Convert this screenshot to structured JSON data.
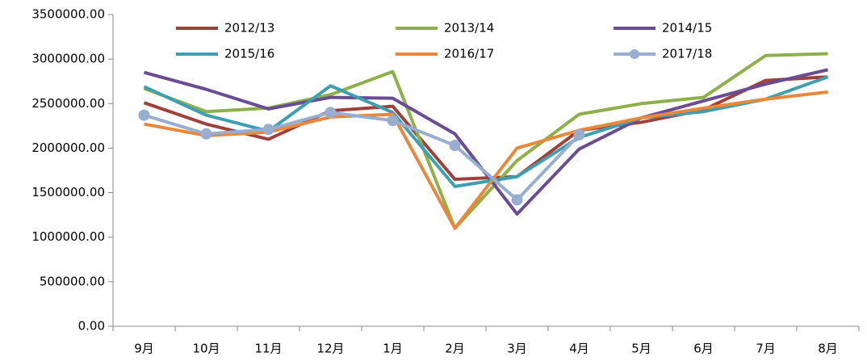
{
  "chart_data": {
    "type": "line",
    "categories": [
      "9月",
      "10月",
      "11月",
      "12月",
      "1月",
      "2月",
      "3月",
      "4月",
      "5月",
      "6月",
      "7月",
      "8月"
    ],
    "series": [
      {
        "name": "2012/13",
        "color": "#a0403a",
        "values": [
          2510000,
          2270000,
          2100000,
          2420000,
          2470000,
          1650000,
          1680000,
          2200000,
          2290000,
          2430000,
          2760000,
          2800000
        ]
      },
      {
        "name": "2013/14",
        "color": "#8db04a",
        "values": [
          2670000,
          2410000,
          2450000,
          2600000,
          2860000,
          1100000,
          1860000,
          2380000,
          2500000,
          2570000,
          3040000,
          3060000
        ]
      },
      {
        "name": "2014/15",
        "color": "#6a4c93",
        "values": [
          2850000,
          2660000,
          2440000,
          2570000,
          2560000,
          2160000,
          1260000,
          1990000,
          2340000,
          2530000,
          2720000,
          2880000
        ]
      },
      {
        "name": "2015/16",
        "color": "#3f9fb0",
        "values": [
          2690000,
          2370000,
          2190000,
          2700000,
          2400000,
          1570000,
          1680000,
          2120000,
          2340000,
          2410000,
          2550000,
          2800000
        ]
      },
      {
        "name": "2016/17",
        "color": "#e9883b",
        "values": [
          2270000,
          2140000,
          2180000,
          2350000,
          2380000,
          1100000,
          2000000,
          2200000,
          2340000,
          2450000,
          2550000,
          2630000
        ]
      },
      {
        "name": "2017/18",
        "color": "#97aed1",
        "markers": true,
        "values": [
          2370000,
          2160000,
          2210000,
          2400000,
          2310000,
          2030000,
          1420000,
          2150000,
          null,
          null,
          null,
          null
        ]
      }
    ],
    "ylim": [
      0,
      3500000
    ],
    "yticks": [
      {
        "value": 0,
        "label": "0.00"
      },
      {
        "value": 500000,
        "label": "500000.00"
      },
      {
        "value": 1000000,
        "label": "1000000.00"
      },
      {
        "value": 1500000,
        "label": "1500000.00"
      },
      {
        "value": 2000000,
        "label": "2000000.00"
      },
      {
        "value": 2500000,
        "label": "2500000.00"
      },
      {
        "value": 3000000,
        "label": "3000000.00"
      },
      {
        "value": 3500000,
        "label": "3500000.00"
      }
    ],
    "grid": false,
    "legend": "top"
  }
}
